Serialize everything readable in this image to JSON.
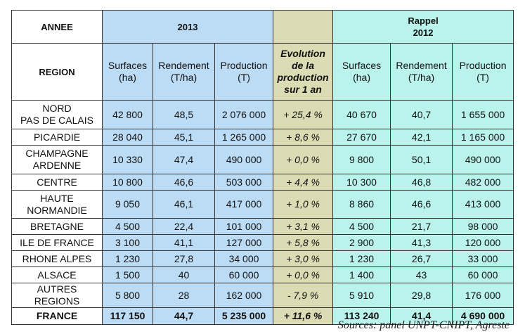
{
  "header": {
    "annee_label": "ANNEE",
    "region_label": "REGION",
    "year_2013": "2013",
    "rappel_2012": "Rappel\n2012",
    "evolution": "Evolution\nde la\nproduction\nsur 1 an",
    "cols_2013": [
      "Surfaces\n(ha)",
      "Rendement\n(T/ha)",
      "Production\n(T)"
    ],
    "cols_2012": [
      "Surfaces\n(ha)",
      "Rendement\n(T/ha)",
      "Production\n(T)"
    ]
  },
  "colors": {
    "col_2013": "#bcdcf5",
    "evolution": "#dcdcb4",
    "col_2012": "#b9f3ec"
  },
  "rows": [
    {
      "region": "NORD\nPAS DE CALAIS",
      "v": [
        "42 800",
        "48,5",
        "2 076 000",
        "+ 25,4 %",
        "40 670",
        "40,7",
        "1 655 000"
      ]
    },
    {
      "region": "PICARDIE",
      "v": [
        "28 040",
        "45,1",
        "1 265 000",
        "+ 8,6 %",
        "27 670",
        "42,1",
        "1 165 000"
      ]
    },
    {
      "region": "CHAMPAGNE\nARDENNE",
      "v": [
        "10 330",
        "47,4",
        "490 000",
        "+ 0,0 %",
        "9 800",
        "50,1",
        "490 000"
      ]
    },
    {
      "region": "CENTRE",
      "v": [
        "10 800",
        "46,6",
        "503 000",
        "+ 4,4 %",
        "10 300",
        "46,8",
        "482 000"
      ]
    },
    {
      "region": "HAUTE\nNORMANDIE",
      "v": [
        "9 050",
        "46,1",
        "417 000",
        "+ 1,0 %",
        "8 860",
        "46,6",
        "413 000"
      ]
    },
    {
      "region": "BRETAGNE",
      "v": [
        "4 500",
        "22,4",
        "101 000",
        "+ 3,1 %",
        "4 500",
        "21,7",
        "98 000"
      ]
    },
    {
      "region": "ILE DE FRANCE",
      "v": [
        "3 100",
        "41,1",
        "127 000",
        "+ 5,8 %",
        "2 900",
        "41,3",
        "120 000"
      ]
    },
    {
      "region": "RHONE ALPES",
      "v": [
        "1 230",
        "27,8",
        "34 000",
        "+ 3,0 %",
        "1 230",
        "26,7",
        "33 000"
      ]
    },
    {
      "region": "ALSACE",
      "v": [
        "1 500",
        "40",
        "60 000",
        "+ 0,0 %",
        "1 400",
        "43",
        "60 000"
      ]
    },
    {
      "region": "AUTRES REGIONS",
      "v": [
        "5 800",
        "28",
        "162 000",
        "- 7,9 %",
        "5 910",
        "29,8",
        "176 000"
      ]
    },
    {
      "region": "FRANCE",
      "v": [
        "117 150",
        "44,7",
        "5 235 000",
        "+ 11,6 %",
        "113 240",
        "41,4",
        "4 690 000"
      ]
    }
  ],
  "source": "Sources: panel UNPT-CNIPT, Agreste"
}
